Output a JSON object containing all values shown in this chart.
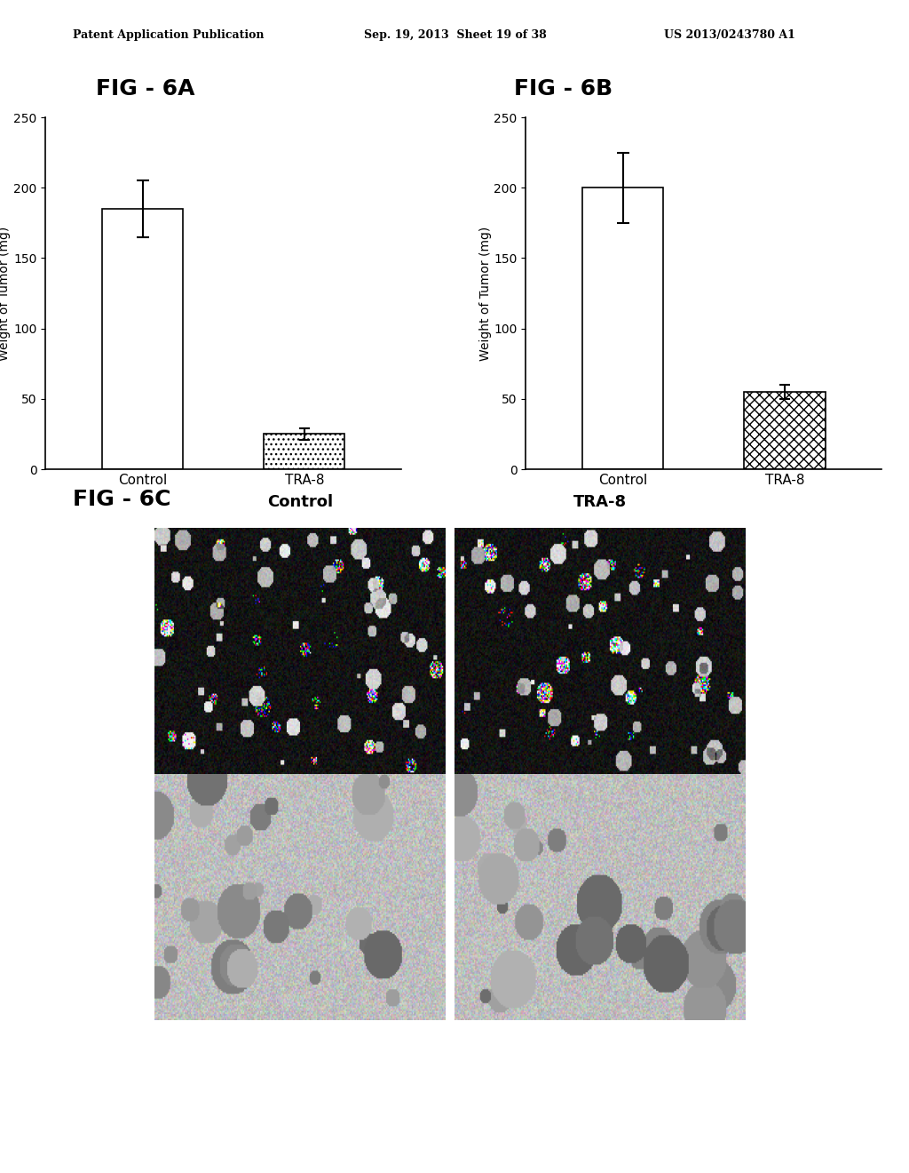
{
  "header_left": "Patent Application Publication",
  "header_center": "Sep. 19, 2013  Sheet 19 of 38",
  "header_right": "US 2013/0243780 A1",
  "fig6a_title": "FIG - 6A",
  "fig6b_title": "FIG - 6B",
  "fig6c_title": "FIG - 6C",
  "fig6a_categories": [
    "Control",
    "TRA-8"
  ],
  "fig6a_values": [
    185,
    25
  ],
  "fig6a_errors": [
    20,
    4
  ],
  "fig6b_categories": [
    "Control",
    "TRA-8"
  ],
  "fig6b_values": [
    200,
    55
  ],
  "fig6b_errors": [
    25,
    5
  ],
  "ylabel": "Weight of Tumor (mg)",
  "ylim": [
    0,
    250
  ],
  "yticks": [
    0,
    50,
    100,
    150,
    200,
    250
  ],
  "control_color": "#ffffff",
  "tra8_color_6a": "dotted_gray",
  "tra8_color_6b": "hatched_gray",
  "background_color": "#ffffff",
  "bar_edgecolor": "#000000",
  "bar_width": 0.5,
  "fig6c_col_labels": [
    "Control",
    "TRA-8"
  ],
  "fig6c_rows": 2,
  "fig6c_cols": 2
}
